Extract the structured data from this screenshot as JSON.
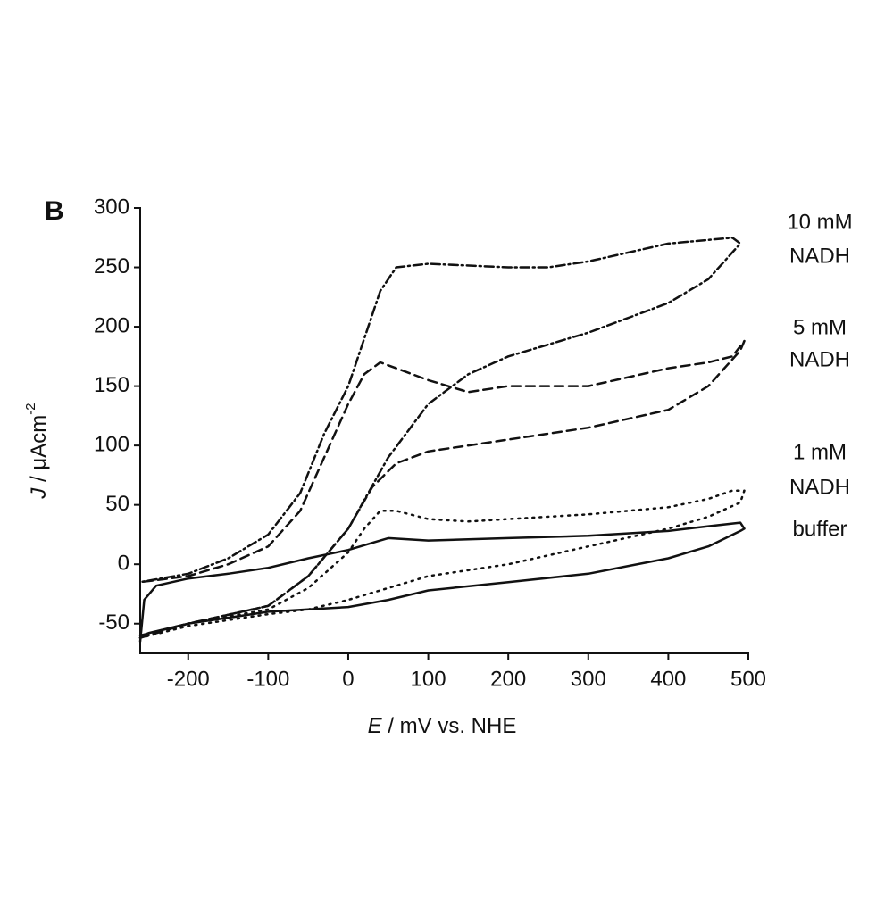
{
  "chart_data": {
    "type": "line",
    "panel_label": "B",
    "xlabel_italic": "E",
    "xlabel": " / mV vs. NHE",
    "ylabel_italic": "J",
    "ylabel": " / μAcm",
    "ylabel_sup": "-2",
    "xlim": [
      -260,
      500
    ],
    "ylim": [
      -75,
      300
    ],
    "xticks": [
      -200,
      -100,
      0,
      100,
      200,
      300,
      400,
      500
    ],
    "yticks": [
      -50,
      0,
      50,
      100,
      150,
      200,
      250,
      300
    ],
    "grid": false,
    "series": [
      {
        "label": [
          "10 mM",
          "NADH"
        ],
        "color": "#111111",
        "dash": "dash-dot",
        "x": [
          -260,
          -200,
          -100,
          -50,
          0,
          50,
          100,
          150,
          200,
          300,
          400,
          450,
          490,
          480,
          400,
          300,
          250,
          200,
          100,
          60,
          40,
          20,
          0,
          -30,
          -60,
          -100,
          -150,
          -200,
          -260
        ],
        "values": [
          -60,
          -50,
          -35,
          -10,
          30,
          90,
          135,
          160,
          175,
          195,
          220,
          240,
          270,
          275,
          270,
          255,
          250,
          250,
          253,
          250,
          230,
          190,
          150,
          110,
          60,
          25,
          5,
          -8,
          -15
        ]
      },
      {
        "label": [
          "5 mM",
          "NADH"
        ],
        "color": "#111111",
        "dash": "dashed",
        "x": [
          -260,
          -200,
          -100,
          -50,
          0,
          30,
          60,
          100,
          200,
          300,
          400,
          450,
          490,
          495,
          480,
          450,
          400,
          300,
          200,
          150,
          100,
          60,
          40,
          20,
          0,
          -30,
          -60,
          -100,
          -150,
          -200,
          -260
        ],
        "values": [
          -62,
          -50,
          -35,
          -10,
          30,
          65,
          85,
          95,
          105,
          115,
          130,
          150,
          180,
          188,
          175,
          170,
          165,
          150,
          150,
          145,
          155,
          165,
          170,
          160,
          135,
          90,
          45,
          15,
          0,
          -10,
          -15
        ]
      },
      {
        "label": [
          "1 mM",
          "NADH"
        ],
        "color": "#111111",
        "dash": "dotted",
        "x": [
          -260,
          -200,
          -100,
          -50,
          0,
          20,
          40,
          60,
          100,
          150,
          200,
          300,
          400,
          450,
          480,
          495,
          490,
          450,
          400,
          300,
          200,
          100,
          50,
          0,
          -50,
          -100,
          -200,
          -260
        ],
        "values": [
          -60,
          -50,
          -38,
          -20,
          10,
          30,
          45,
          45,
          38,
          36,
          38,
          42,
          48,
          55,
          62,
          62,
          52,
          40,
          30,
          15,
          0,
          -10,
          -20,
          -30,
          -38,
          -42,
          -52,
          -62
        ]
      },
      {
        "label": [
          "buffer"
        ],
        "color": "#111111",
        "dash": "solid",
        "x": [
          -260,
          -255,
          -240,
          -200,
          -150,
          -100,
          -50,
          0,
          30,
          50,
          100,
          200,
          300,
          400,
          450,
          490,
          495,
          490,
          450,
          400,
          300,
          200,
          100,
          50,
          0,
          -50,
          -100,
          -150,
          -200,
          -250,
          -260
        ],
        "values": [
          -65,
          -30,
          -18,
          -12,
          -8,
          -3,
          5,
          12,
          18,
          22,
          20,
          22,
          24,
          28,
          32,
          35,
          30,
          28,
          15,
          5,
          -8,
          -15,
          -22,
          -30,
          -36,
          -38,
          -40,
          -45,
          -50,
          -58,
          -62
        ]
      }
    ]
  }
}
